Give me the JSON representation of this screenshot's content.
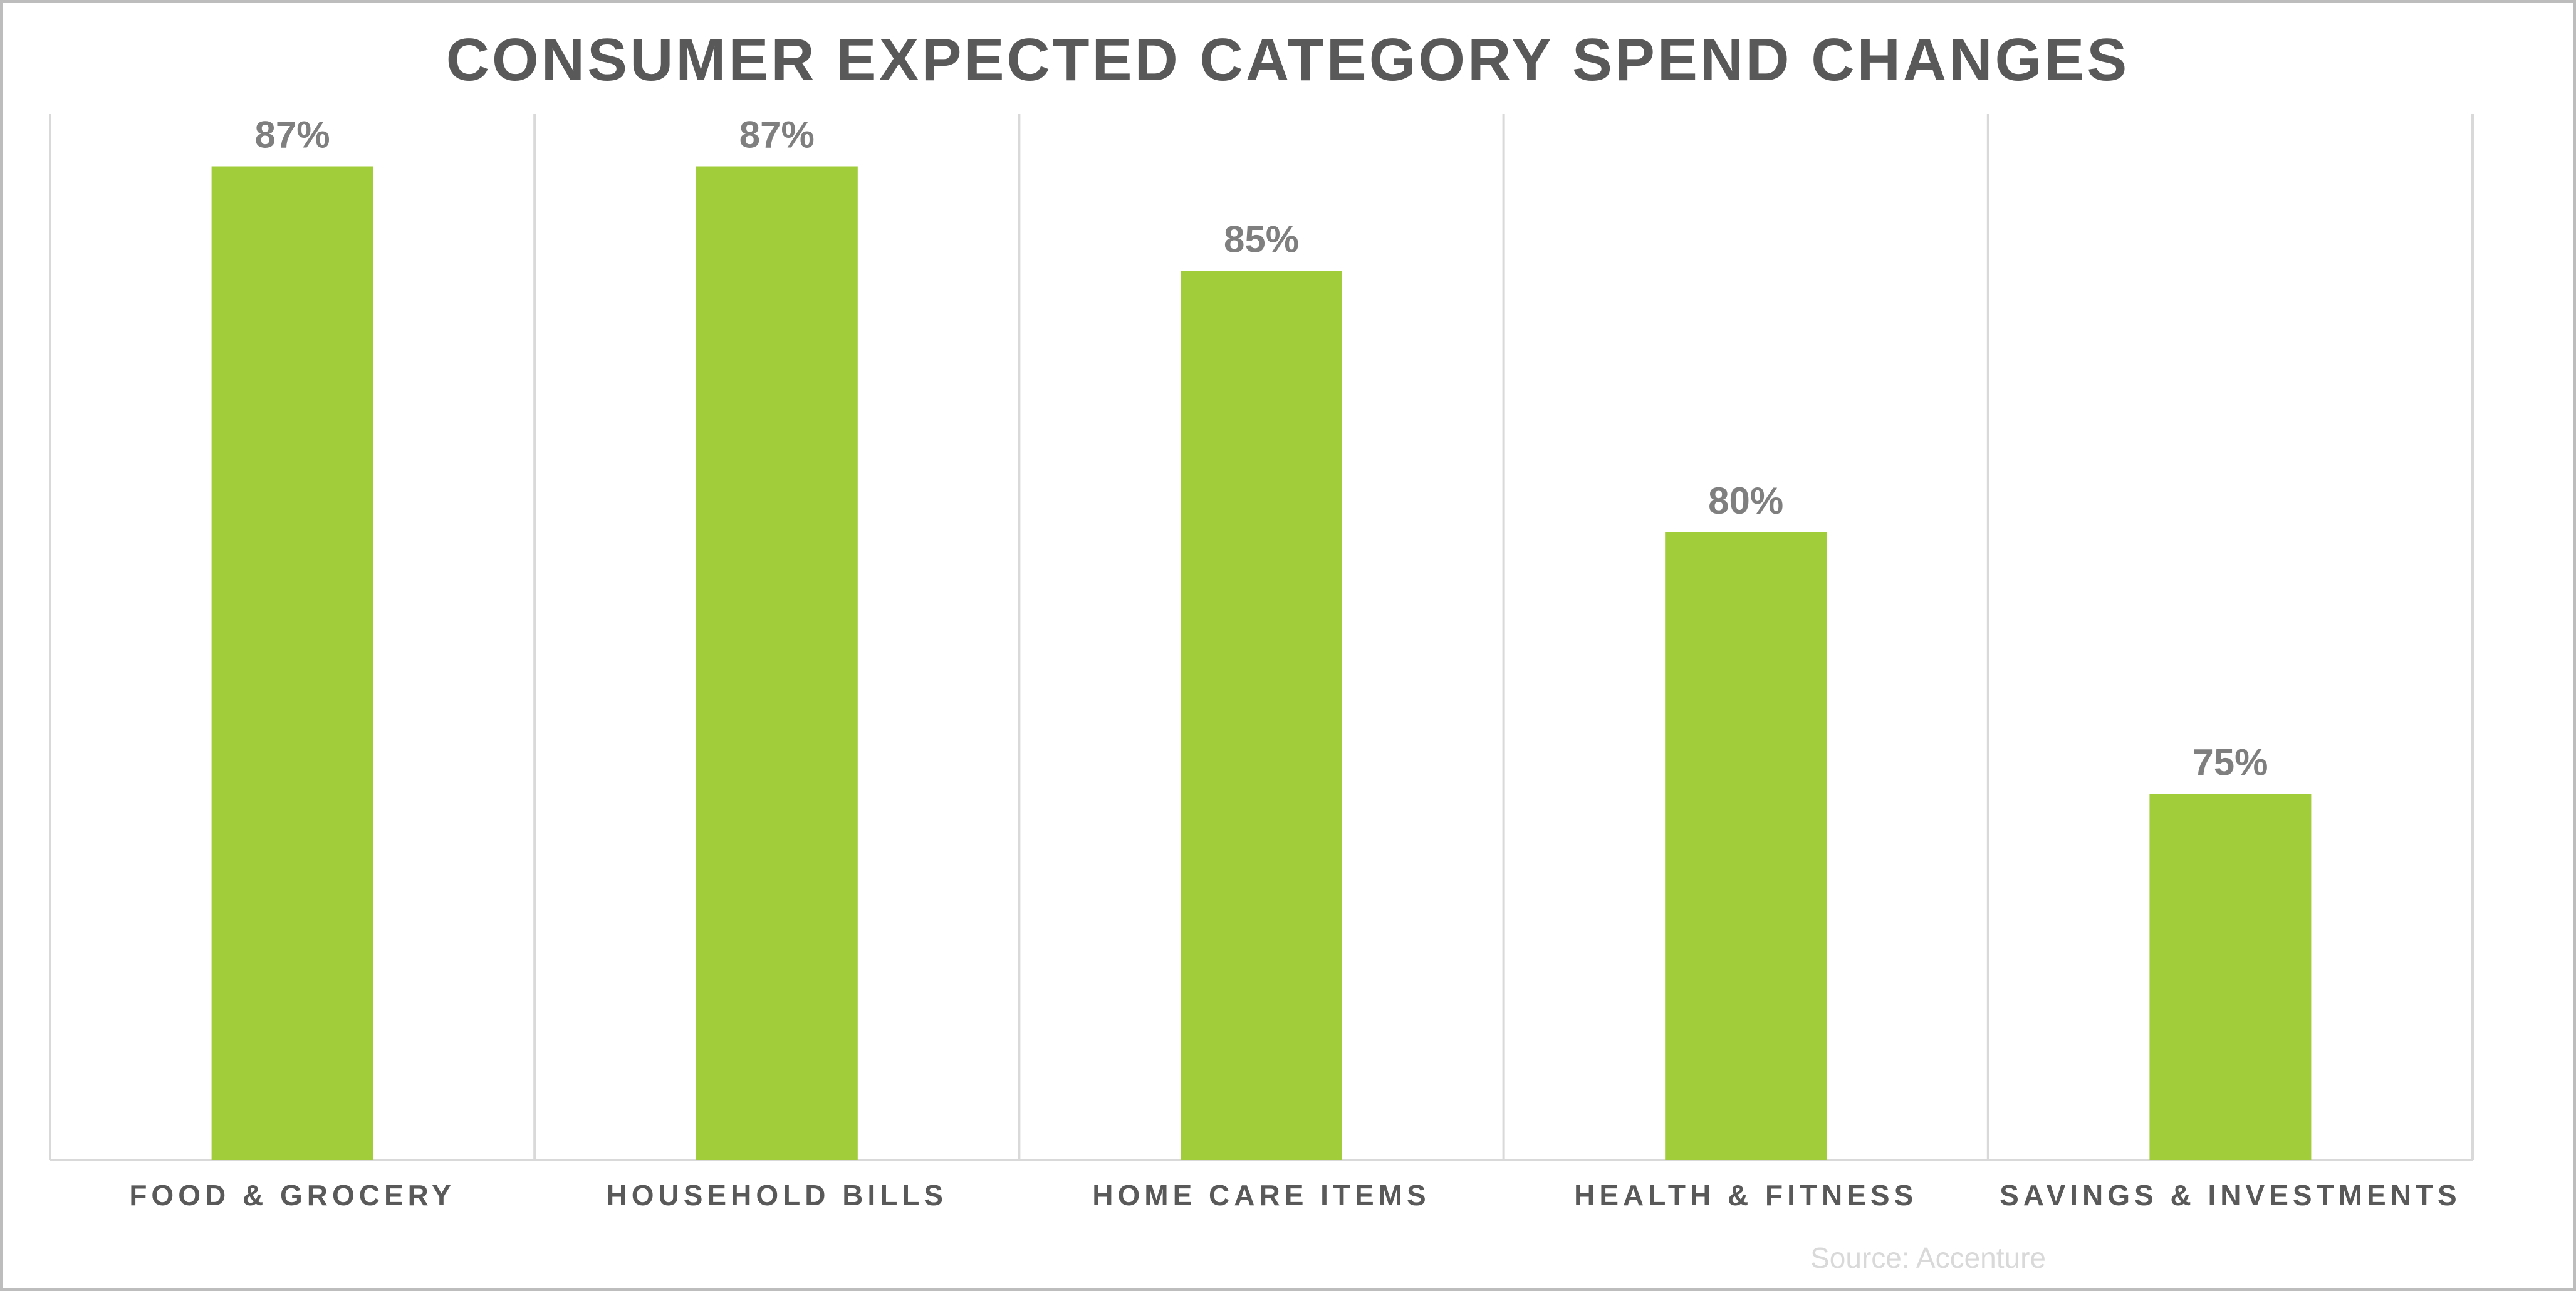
{
  "chart_data": {
    "type": "bar",
    "title": "CONSUMER EXPECTED CATEGORY SPEND CHANGES",
    "categories": [
      "FOOD & GROCERY",
      "HOUSEHOLD BILLS",
      "HOME CARE ITEMS",
      "HEALTH & FITNESS",
      "SAVINGS & INVESTMENTS"
    ],
    "values": [
      87,
      87,
      85,
      80,
      75
    ],
    "value_labels": [
      "87%",
      "87%",
      "85%",
      "80%",
      "75%"
    ],
    "unit": "%",
    "ylim": [
      68,
      88
    ],
    "grid": "vertical category separators",
    "source": "Source: Accenture",
    "colors": {
      "bar": "#a2cd3a",
      "title": "#595959",
      "value_label": "#7f7f7f",
      "category_label": "#595959",
      "gridline": "#d9d9d9",
      "source": "#d9d9d9",
      "frame": "#bdbdbd"
    }
  }
}
